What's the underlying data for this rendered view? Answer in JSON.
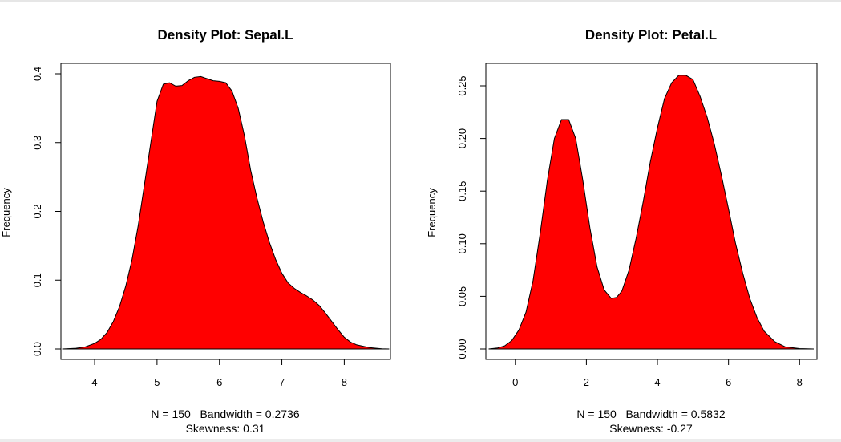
{
  "chart_data": [
    {
      "type": "area",
      "title": "Density Plot: Sepal.L",
      "xlabel": "N = 150   Bandwidth = 0.2736",
      "subnote": "Skewness: 0.31",
      "ylabel": "Frequency",
      "fill_color": "#ff0000",
      "xlim": [
        3.46,
        8.74
      ],
      "ylim": [
        0,
        0.4
      ],
      "xticks": [
        4,
        5,
        6,
        7,
        8
      ],
      "yticks": [
        0.0,
        0.1,
        0.2,
        0.3,
        0.4
      ],
      "ytick_labels": [
        "0.0",
        "0.1",
        "0.2",
        "0.3",
        "0.4"
      ],
      "x": [
        3.48,
        3.7,
        3.85,
        4.0,
        4.1,
        4.2,
        4.3,
        4.4,
        4.5,
        4.6,
        4.7,
        4.8,
        4.9,
        5.0,
        5.1,
        5.2,
        5.3,
        5.4,
        5.5,
        5.6,
        5.7,
        5.8,
        5.9,
        6.0,
        6.1,
        6.2,
        6.3,
        6.4,
        6.5,
        6.6,
        6.7,
        6.8,
        6.9,
        7.0,
        7.1,
        7.2,
        7.3,
        7.4,
        7.5,
        7.6,
        7.7,
        7.8,
        7.9,
        8.0,
        8.1,
        8.2,
        8.4,
        8.6,
        8.72
      ],
      "y": [
        0.0,
        0.001,
        0.003,
        0.008,
        0.014,
        0.024,
        0.04,
        0.062,
        0.092,
        0.13,
        0.18,
        0.24,
        0.3,
        0.36,
        0.385,
        0.387,
        0.382,
        0.383,
        0.39,
        0.395,
        0.396,
        0.393,
        0.39,
        0.389,
        0.387,
        0.375,
        0.35,
        0.31,
        0.26,
        0.22,
        0.185,
        0.155,
        0.13,
        0.11,
        0.096,
        0.088,
        0.082,
        0.077,
        0.071,
        0.063,
        0.052,
        0.04,
        0.028,
        0.017,
        0.01,
        0.006,
        0.002,
        0.0004,
        0.0
      ]
    },
    {
      "type": "area",
      "title": "Density Plot: Petal.L",
      "xlabel": "N = 150   Bandwidth = 0.5832",
      "subnote": "Skewness: -0.27",
      "ylabel": "Frequency",
      "fill_color": "#ff0000",
      "xlim": [
        -0.83,
        8.49
      ],
      "ylim": [
        0,
        0.26
      ],
      "xticks": [
        0,
        2,
        4,
        6,
        8
      ],
      "yticks": [
        0.0,
        0.05,
        0.1,
        0.15,
        0.2,
        0.25
      ],
      "ytick_labels": [
        "0.00",
        "0.05",
        "0.10",
        "0.15",
        "0.20",
        "0.25"
      ],
      "x": [
        -0.75,
        -0.5,
        -0.3,
        -0.1,
        0.1,
        0.3,
        0.5,
        0.7,
        0.9,
        1.1,
        1.3,
        1.5,
        1.7,
        1.9,
        2.1,
        2.3,
        2.5,
        2.7,
        2.85,
        3.0,
        3.2,
        3.4,
        3.6,
        3.8,
        4.0,
        4.2,
        4.4,
        4.6,
        4.8,
        5.0,
        5.2,
        5.4,
        5.6,
        5.8,
        6.0,
        6.2,
        6.4,
        6.6,
        6.8,
        7.0,
        7.3,
        7.6,
        8.0,
        8.4
      ],
      "y": [
        0.0,
        0.001,
        0.003,
        0.008,
        0.018,
        0.035,
        0.065,
        0.11,
        0.16,
        0.2,
        0.218,
        0.218,
        0.2,
        0.16,
        0.115,
        0.078,
        0.056,
        0.048,
        0.049,
        0.055,
        0.075,
        0.105,
        0.14,
        0.178,
        0.21,
        0.238,
        0.253,
        0.26,
        0.26,
        0.256,
        0.24,
        0.22,
        0.195,
        0.165,
        0.133,
        0.1,
        0.072,
        0.048,
        0.03,
        0.017,
        0.007,
        0.002,
        0.0004,
        0.0
      ]
    }
  ]
}
